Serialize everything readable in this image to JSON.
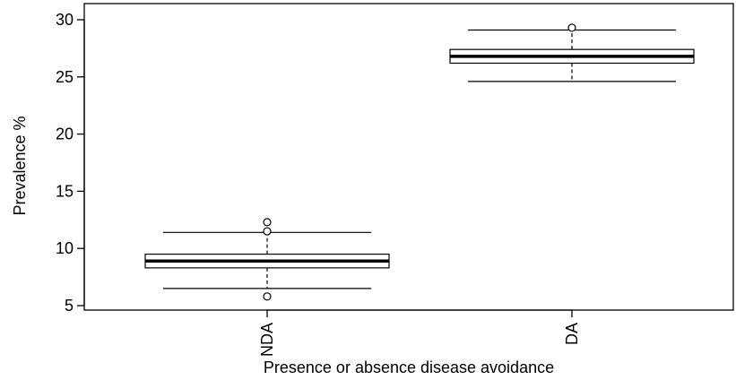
{
  "chart_data": {
    "type": "boxplot",
    "title": "",
    "xlabel": "Presence or absence disease avoidance",
    "ylabel": "Prevalence %",
    "ylim": [
      5,
      30
    ],
    "yticks": [
      5,
      10,
      15,
      20,
      25,
      30
    ],
    "grid": false,
    "legend": "none",
    "categories": [
      "NDA",
      "DA"
    ],
    "boxes": [
      {
        "category": "NDA",
        "whisker_low": 6.5,
        "q1": 8.3,
        "median": 8.9,
        "q3": 9.5,
        "whisker_high": 11.4,
        "outliers": [
          5.8,
          11.5,
          12.3
        ]
      },
      {
        "category": "DA",
        "whisker_low": 24.6,
        "q1": 26.2,
        "median": 26.8,
        "q3": 27.4,
        "whisker_high": 29.1,
        "outliers": [
          29.3
        ]
      }
    ],
    "colors": {
      "box_fill": "#ffffff",
      "stroke": "#000000"
    }
  }
}
